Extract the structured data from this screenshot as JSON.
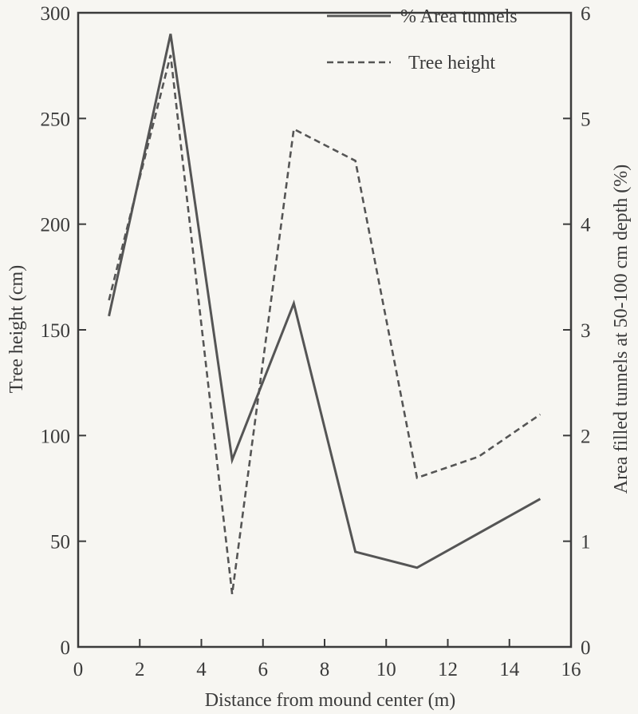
{
  "chart_data": {
    "type": "line",
    "xlabel": "Distance from mound center (m)",
    "ylabel_left": "Tree height (cm)",
    "ylabel_right": "Area filled tunnels at 50-100 cm depth (%)",
    "xlim": [
      0,
      16
    ],
    "ylim_left": [
      0,
      300
    ],
    "ylim_right": [
      0,
      6
    ],
    "x_ticks": [
      "0",
      "2",
      "4",
      "6",
      "8",
      "10",
      "12",
      "14",
      "16"
    ],
    "y_left_ticks": [
      "0",
      "50",
      "100",
      "150",
      "200",
      "250",
      "300"
    ],
    "y_right_ticks": [
      "0",
      "1",
      "2",
      "3",
      "4",
      "5",
      "6"
    ],
    "grid": false,
    "legend_position": "top-right",
    "series": [
      {
        "name": "% Area tunnels",
        "axis": "right",
        "style": "solid",
        "x": [
          1,
          3,
          5,
          7,
          9,
          11,
          15
        ],
        "values": [
          3.13,
          5.8,
          1.77,
          3.25,
          0.9,
          0.75,
          1.4
        ]
      },
      {
        "name": "Tree height",
        "axis": "left",
        "style": "dashed",
        "x": [
          1,
          3,
          5,
          7,
          9,
          11,
          13,
          15
        ],
        "values": [
          164,
          280,
          25,
          245,
          230,
          80,
          90,
          110
        ]
      }
    ],
    "colors": {
      "line": "#555555",
      "axis": "#3b3b3b",
      "background": "#f7f6f2"
    }
  }
}
